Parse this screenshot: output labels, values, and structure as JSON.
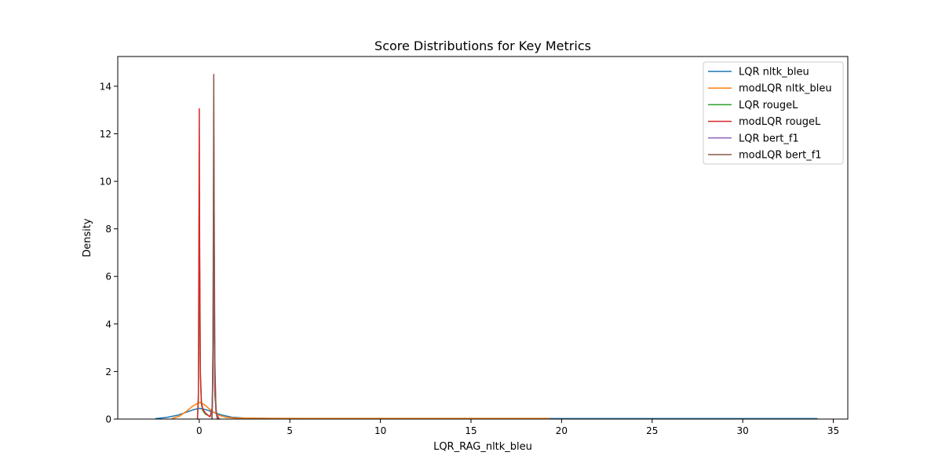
{
  "chart_data": {
    "type": "line",
    "title": "Score Distributions for Key Metrics",
    "xlabel": "LQR_RAG_nltk_bleu",
    "ylabel": "Density",
    "xlim": [
      -4.5,
      35.8
    ],
    "ylim": [
      0,
      15.25
    ],
    "xticks": [
      0,
      5,
      10,
      15,
      20,
      25,
      30,
      35
    ],
    "yticks": [
      0,
      2,
      4,
      6,
      8,
      10,
      12,
      14
    ],
    "legend_position": "top-right",
    "grid": false,
    "series": [
      {
        "name": "LQR nltk_bleu",
        "color": "#1f77b4",
        "points": [
          [
            -2.4,
            0.02
          ],
          [
            -1.8,
            0.07
          ],
          [
            -1.2,
            0.16
          ],
          [
            -0.7,
            0.29
          ],
          [
            -0.3,
            0.4
          ],
          [
            0.0,
            0.45
          ],
          [
            0.3,
            0.41
          ],
          [
            0.7,
            0.31
          ],
          [
            1.2,
            0.18
          ],
          [
            1.8,
            0.08
          ],
          [
            2.5,
            0.04
          ],
          [
            4,
            0.03
          ],
          [
            8,
            0.02
          ],
          [
            15,
            0.02
          ],
          [
            20,
            0.02
          ],
          [
            25,
            0.02
          ],
          [
            30,
            0.02
          ],
          [
            34.1,
            0.02
          ]
        ]
      },
      {
        "name": "modLQR nltk_bleu",
        "color": "#ff7f0e",
        "points": [
          [
            -1.5,
            0.02
          ],
          [
            -1.1,
            0.12
          ],
          [
            -0.7,
            0.33
          ],
          [
            -0.35,
            0.55
          ],
          [
            -0.1,
            0.66
          ],
          [
            0.05,
            0.7
          ],
          [
            0.25,
            0.62
          ],
          [
            0.6,
            0.4
          ],
          [
            1.0,
            0.18
          ],
          [
            1.5,
            0.07
          ],
          [
            2.0,
            0.04
          ],
          [
            4,
            0.03
          ],
          [
            10,
            0.03
          ],
          [
            15,
            0.03
          ],
          [
            19.3,
            0.03
          ]
        ]
      },
      {
        "name": "LQR rougeL",
        "color": "#2ca02c",
        "points": [
          [
            -0.1,
            0.0
          ],
          [
            -0.05,
            0.8
          ],
          [
            -0.02,
            5.5
          ],
          [
            0.0,
            9.8
          ],
          [
            0.02,
            6.5
          ],
          [
            0.06,
            1.8
          ],
          [
            0.12,
            0.6
          ],
          [
            0.2,
            0.35
          ],
          [
            0.35,
            0.2
          ],
          [
            0.5,
            0.15
          ],
          [
            0.6,
            0.1
          ],
          [
            0.72,
            0.4
          ],
          [
            0.78,
            4.0
          ],
          [
            0.8,
            9.0
          ],
          [
            0.82,
            5.0
          ],
          [
            0.86,
            1.0
          ],
          [
            0.95,
            0.2
          ],
          [
            1.1,
            0.0
          ]
        ]
      },
      {
        "name": "modLQR rougeL",
        "color": "#d62728",
        "points": [
          [
            -0.1,
            0.0
          ],
          [
            -0.05,
            1.0
          ],
          [
            -0.02,
            7.5
          ],
          [
            0.0,
            13.05
          ],
          [
            0.02,
            7.5
          ],
          [
            0.06,
            2.0
          ],
          [
            0.12,
            0.7
          ],
          [
            0.2,
            0.4
          ],
          [
            0.35,
            0.25
          ],
          [
            0.5,
            0.15
          ],
          [
            0.6,
            0.1
          ],
          [
            0.72,
            0.5
          ],
          [
            0.78,
            5.0
          ],
          [
            0.8,
            10.5
          ],
          [
            0.82,
            6.0
          ],
          [
            0.86,
            1.2
          ],
          [
            0.95,
            0.2
          ],
          [
            1.1,
            0.0
          ]
        ]
      },
      {
        "name": "LQR bert_f1",
        "color": "#9467bd",
        "points": [
          [
            0.7,
            0.0
          ],
          [
            0.75,
            1.5
          ],
          [
            0.78,
            7.0
          ],
          [
            0.8,
            12.0
          ],
          [
            0.82,
            7.5
          ],
          [
            0.86,
            2.0
          ],
          [
            0.92,
            0.3
          ],
          [
            1.0,
            0.0
          ]
        ]
      },
      {
        "name": "modLQR bert_f1",
        "color": "#8c564b",
        "points": [
          [
            0.7,
            0.0
          ],
          [
            0.75,
            2.0
          ],
          [
            0.78,
            9.0
          ],
          [
            0.8,
            14.5
          ],
          [
            0.82,
            9.5
          ],
          [
            0.86,
            2.5
          ],
          [
            0.92,
            0.4
          ],
          [
            1.0,
            0.0
          ]
        ]
      }
    ]
  }
}
